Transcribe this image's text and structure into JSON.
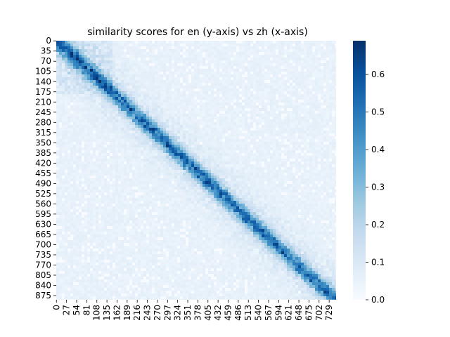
{
  "chart_data": {
    "type": "heatmap",
    "title": "similarity scores for en (y-axis) vs zh (x-axis)",
    "xlabel": "",
    "ylabel": "",
    "x_range": [
      0,
      748
    ],
    "y_range": [
      0,
      890
    ],
    "x_tick_labels": [
      "0",
      "27",
      "54",
      "81",
      "108",
      "135",
      "162",
      "189",
      "216",
      "243",
      "270",
      "297",
      "324",
      "351",
      "378",
      "405",
      "432",
      "459",
      "486",
      "513",
      "540",
      "567",
      "594",
      "621",
      "648",
      "675",
      "702",
      "729"
    ],
    "y_tick_labels": [
      "0",
      "35",
      "70",
      "105",
      "140",
      "175",
      "210",
      "245",
      "280",
      "315",
      "350",
      "385",
      "420",
      "455",
      "490",
      "525",
      "560",
      "595",
      "630",
      "665",
      "700",
      "735",
      "770",
      "805",
      "840",
      "875"
    ],
    "colorbar": {
      "vmin": 0.0,
      "vmax": 0.69,
      "ticks": [
        "0.0",
        "0.1",
        "0.2",
        "0.3",
        "0.4",
        "0.5",
        "0.6"
      ],
      "colormap": "Blues"
    },
    "pattern": "strong diagonal band of high similarity from top-left to bottom-right, low background values",
    "colors": {
      "low": "#f7fbff",
      "high": "#08306b"
    }
  }
}
